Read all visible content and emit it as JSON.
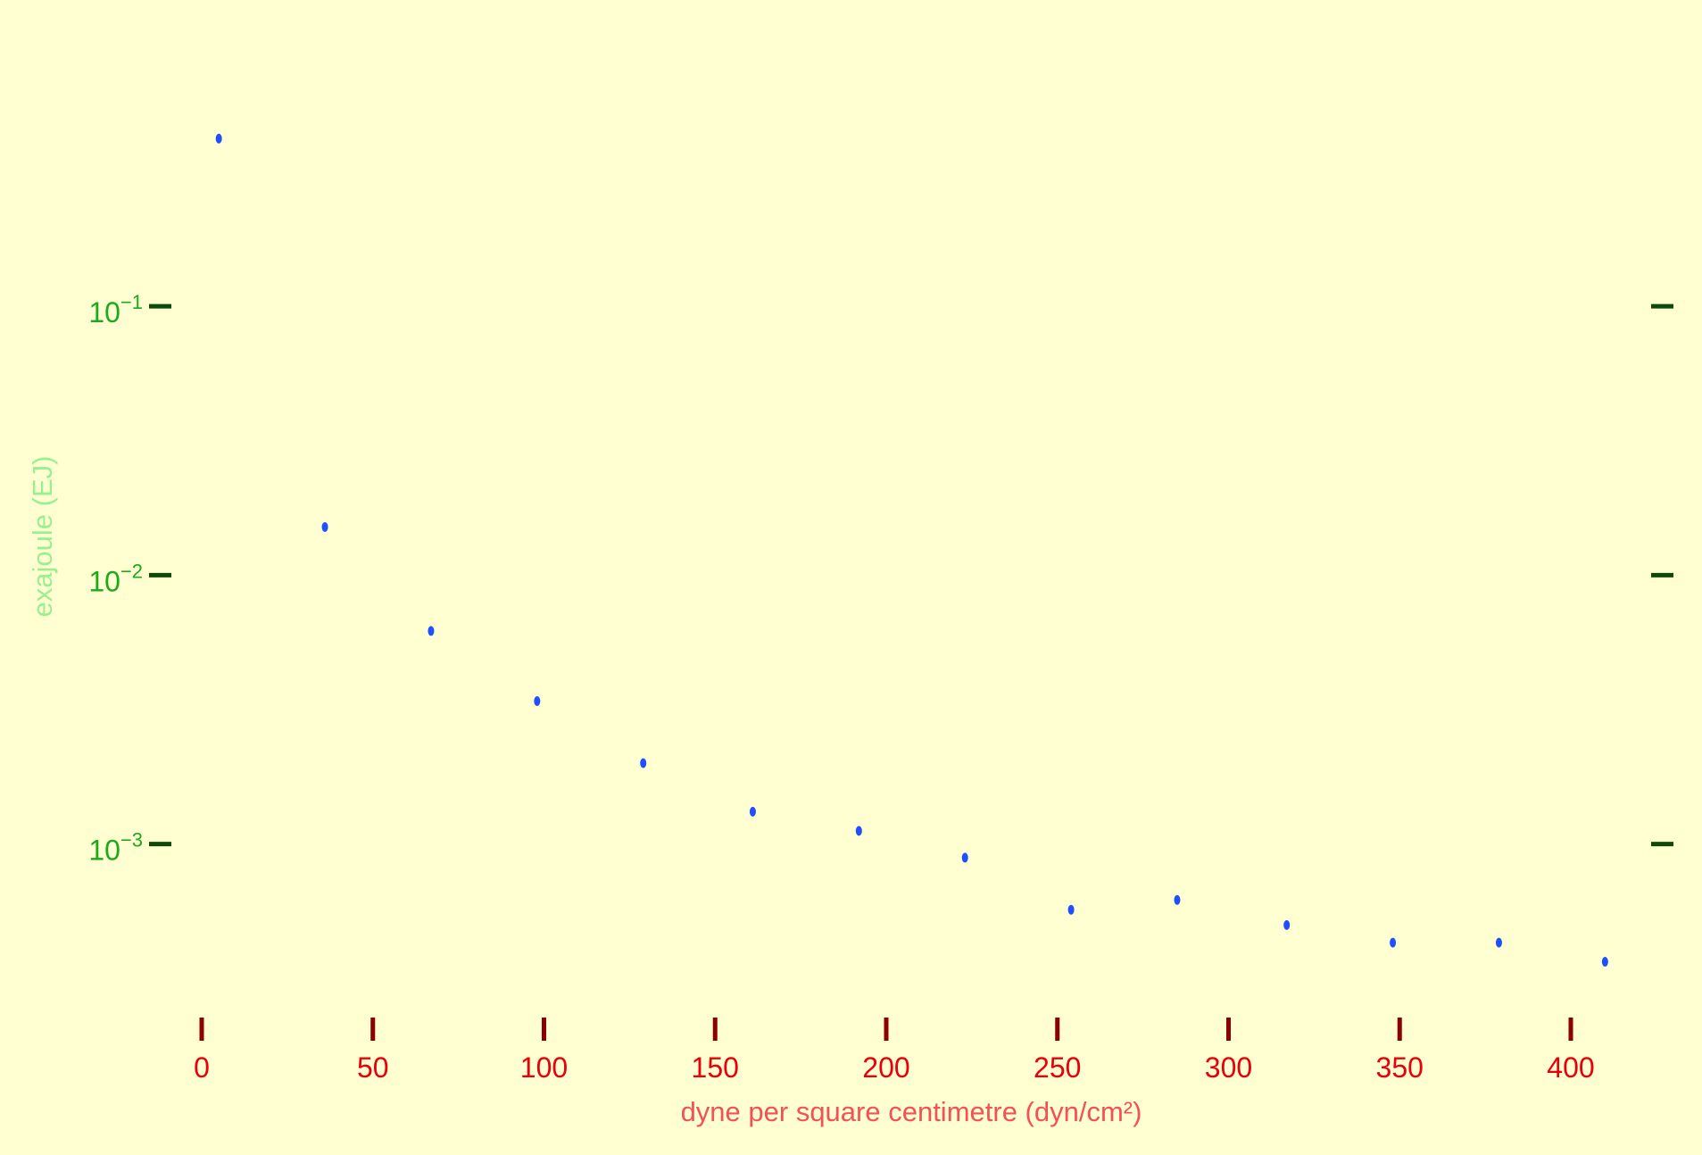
{
  "chart_data": {
    "type": "scatter",
    "title": "",
    "xlabel": "dyne per square centimetre (dyn/cm²)",
    "ylabel": "exajoule (EJ)",
    "xlim": [
      -5,
      420
    ],
    "ylim": [
      0.000254,
      0.87
    ],
    "yscale": "log",
    "grid": false,
    "legend": "none",
    "x_ticks": [
      {
        "value": 0,
        "label": "0"
      },
      {
        "value": 50,
        "label": "50"
      },
      {
        "value": 100,
        "label": "100"
      },
      {
        "value": 150,
        "label": "150"
      },
      {
        "value": 200,
        "label": "200"
      },
      {
        "value": 250,
        "label": "250"
      },
      {
        "value": 300,
        "label": "300"
      },
      {
        "value": 350,
        "label": "350"
      },
      {
        "value": 400,
        "label": "400"
      }
    ],
    "y_ticks": [
      {
        "value": 0.1,
        "base": "10",
        "exp": "−1"
      },
      {
        "value": 0.01,
        "base": "10",
        "exp": "−2"
      },
      {
        "value": 0.001,
        "base": "10",
        "exp": "−3"
      }
    ],
    "series": [
      {
        "x": [
          5,
          36,
          67,
          98,
          129,
          161,
          192,
          223,
          254,
          285,
          317,
          348,
          379,
          410
        ],
        "y": [
          0.42,
          0.0151,
          0.0062,
          0.0034,
          0.002,
          0.00132,
          0.00112,
          0.00089,
          0.00057,
          0.00062,
          0.0005,
          0.00043,
          0.00043,
          0.000365
        ]
      }
    ],
    "colors": {
      "background": "#ffffd1",
      "point": "#1f4fff",
      "x_tick_mark": "#8b0000",
      "x_tick_label": "#e8000b",
      "x_axis_title": "#f4505a",
      "y_tick_mark": "#0b4a0b",
      "y_tick_label": "#1aaa1a",
      "y_axis_title": "#99f090"
    }
  }
}
